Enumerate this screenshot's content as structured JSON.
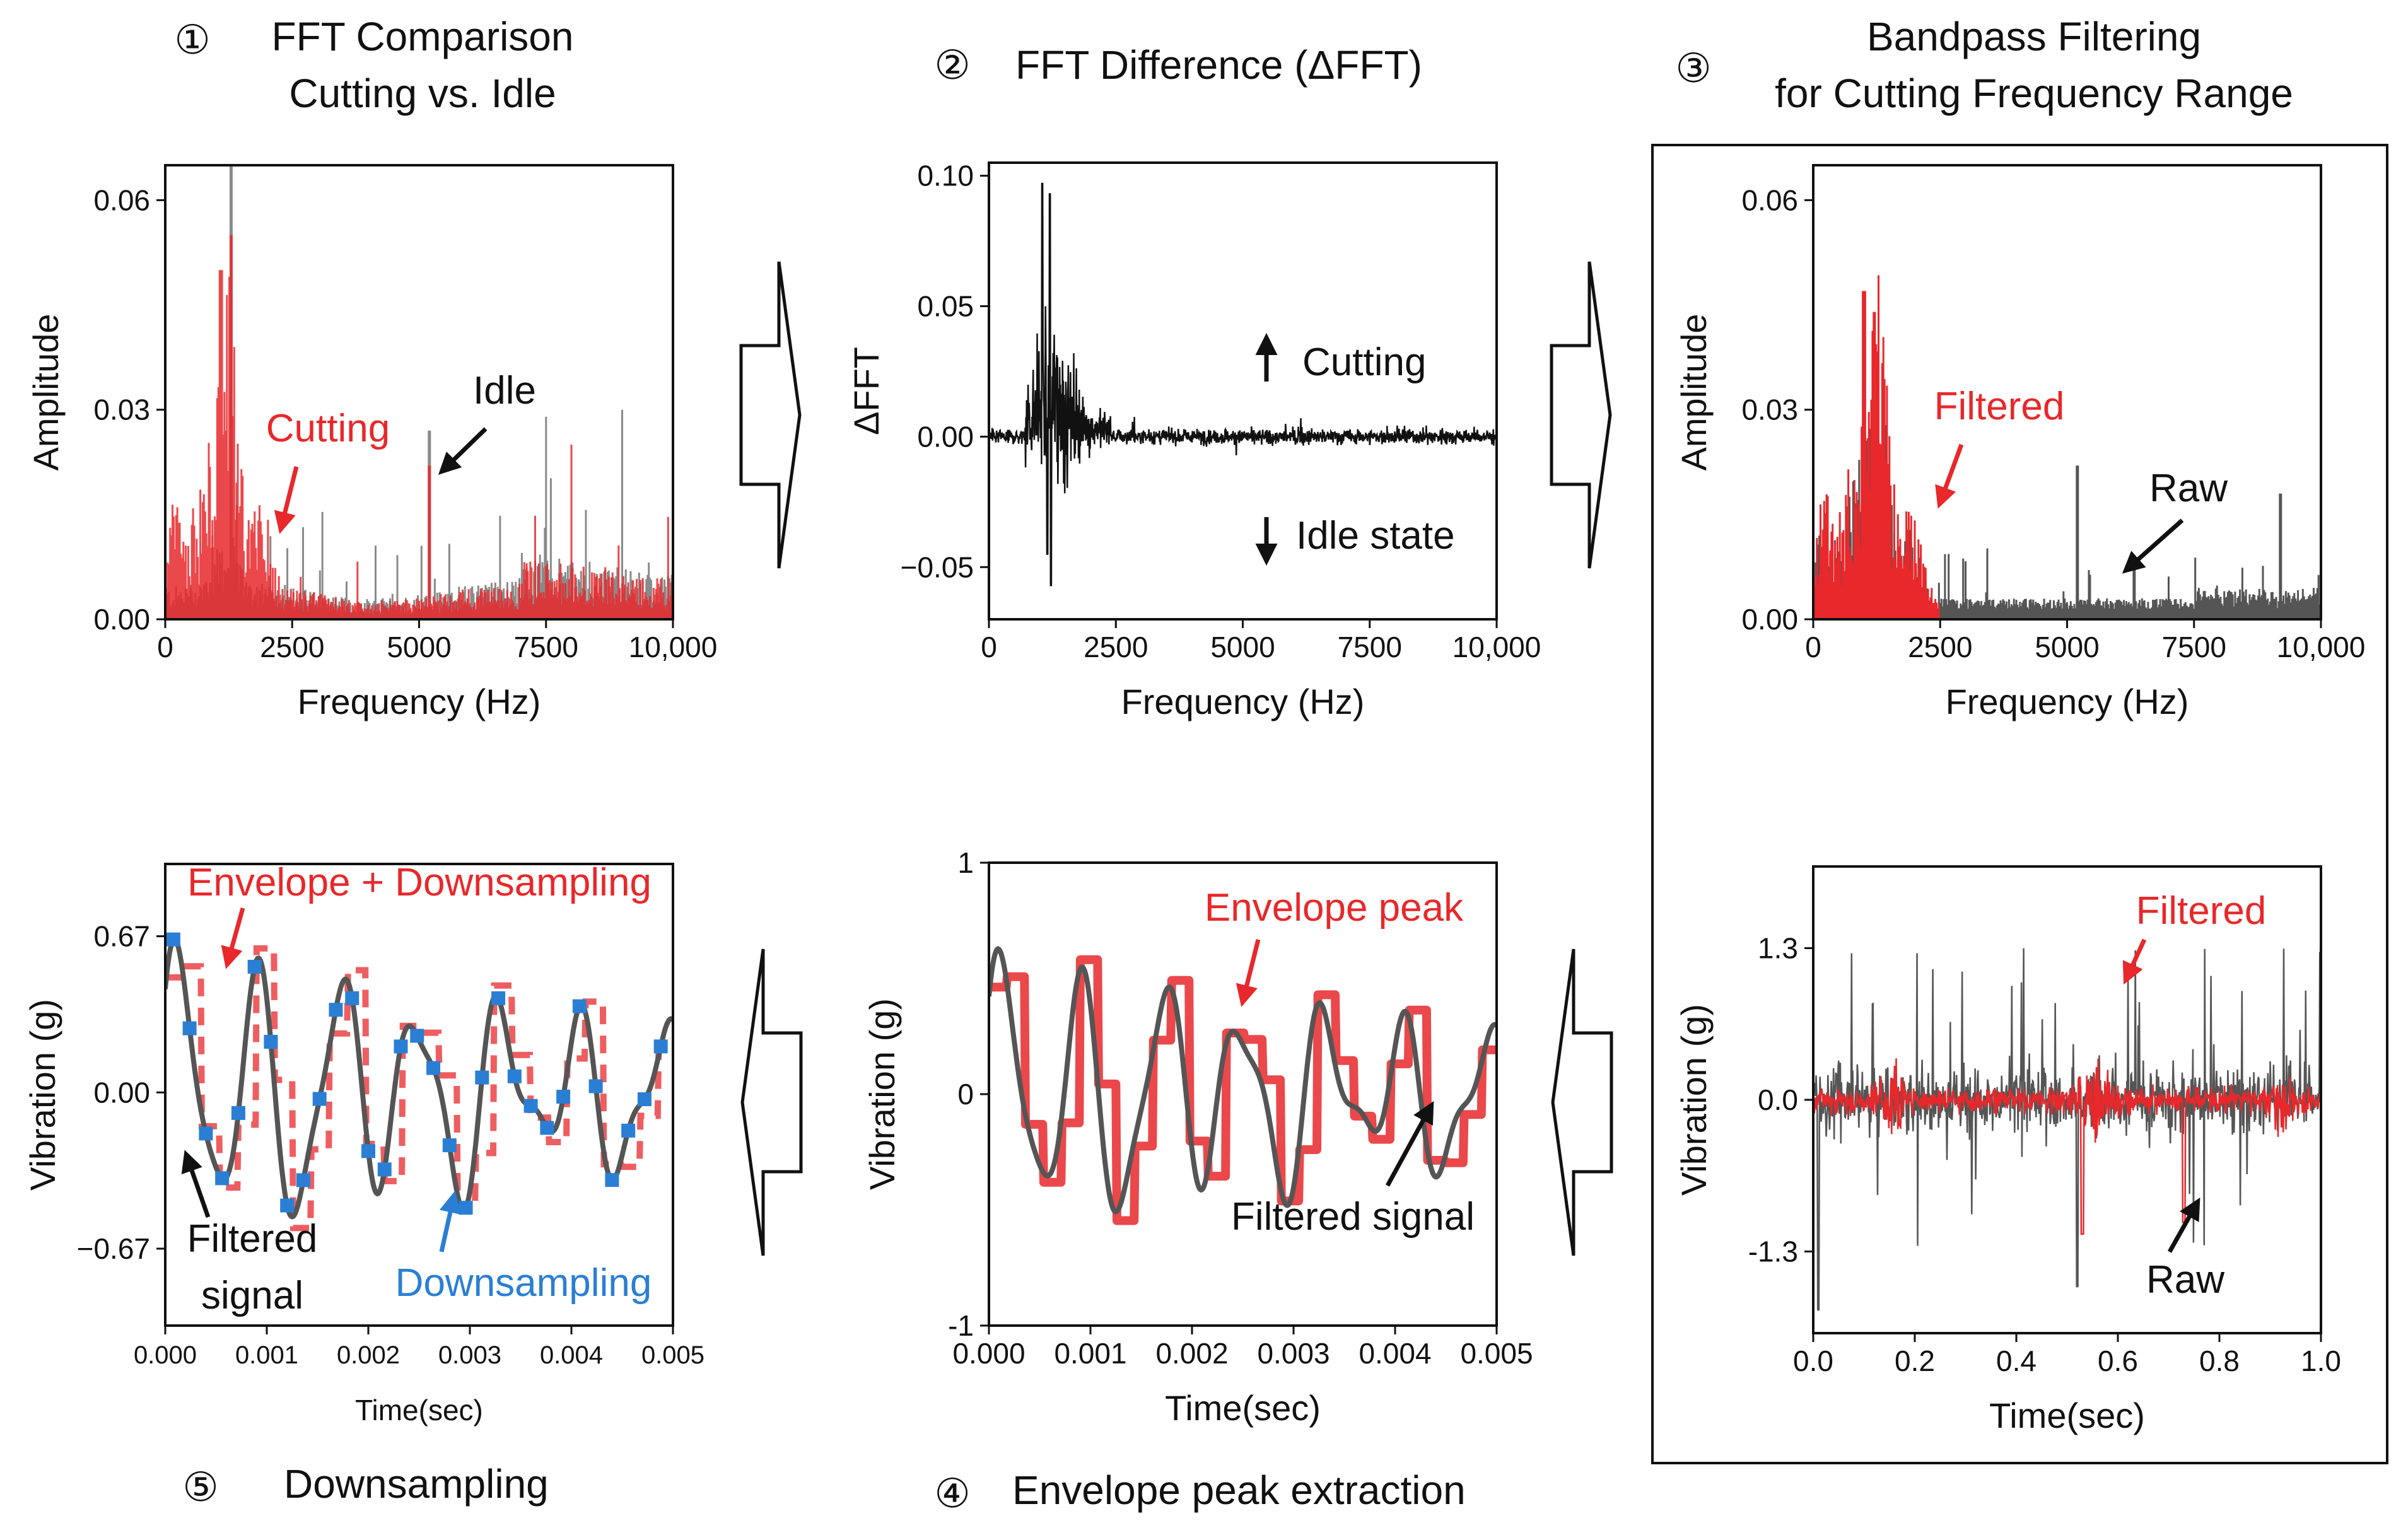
{
  "steps": [
    {
      "num": "①",
      "title_lines": [
        "FFT Comparison",
        "Cutting vs. Idle"
      ]
    },
    {
      "num": "②",
      "title_lines": [
        "FFT Difference (ΔFFT)"
      ]
    },
    {
      "num": "③",
      "title_lines": [
        "Bandpass Filtering",
        "for Cutting Frequency Range"
      ]
    },
    {
      "num": "④",
      "title_lines": [
        "Envelope peak extraction"
      ]
    },
    {
      "num": "⑤",
      "title_lines": [
        "Downsampling"
      ]
    }
  ],
  "colors": {
    "red": "#e8282b",
    "dark": "#555555",
    "blue": "#2a7fd4",
    "black": "#111111"
  },
  "icons": [
    "arrow-right-icon",
    "arrow-right-icon",
    "arrow-left-icon",
    "arrow-left-icon"
  ],
  "chart_data": [
    {
      "id": "p1",
      "type": "bar",
      "xlabel": "Frequency (Hz)",
      "ylabel": "Amplitude",
      "xlim": [
        0,
        10000
      ],
      "ylim": [
        0,
        0.065
      ],
      "xticks": [
        "0",
        "2500",
        "5000",
        "7500",
        "10,000"
      ],
      "yticks": [
        "0.00",
        "0.03",
        "0.06"
      ],
      "series": [
        {
          "name": "Cutting"
        },
        {
          "name": "Idle"
        }
      ],
      "annotations": [
        {
          "text": "Cutting"
        },
        {
          "text": "Idle"
        }
      ]
    },
    {
      "id": "p2",
      "type": "line",
      "xlabel": "Frequency (Hz)",
      "ylabel": "ΔFFT",
      "xlim": [
        0,
        10000
      ],
      "ylim": [
        -0.07,
        0.105
      ],
      "xticks": [
        "0",
        "2500",
        "5000",
        "7500",
        "10,000"
      ],
      "yticks": [
        "0.10",
        "0.05",
        "0.00",
        "−0.05"
      ],
      "annotations": [
        {
          "text": "Cutting"
        },
        {
          "text": "Idle state"
        }
      ]
    },
    {
      "id": "p3a",
      "type": "bar",
      "xlabel": "Frequency (Hz)",
      "ylabel": "Amplitude",
      "xlim": [
        0,
        10000
      ],
      "ylim": [
        0,
        0.065
      ],
      "xticks": [
        "0",
        "2500",
        "5000",
        "7500",
        "10,000"
      ],
      "yticks": [
        "0.00",
        "0.03",
        "0.06"
      ],
      "series": [
        {
          "name": "Filtered"
        },
        {
          "name": "Raw"
        }
      ],
      "annotations": [
        {
          "text": "Filtered"
        },
        {
          "text": "Raw"
        }
      ]
    },
    {
      "id": "p3b",
      "type": "line",
      "xlabel": "Time(sec)",
      "ylabel": "Vibration (g)",
      "xlim": [
        0,
        1.0
      ],
      "ylim": [
        -2.0,
        2.0
      ],
      "xticks": [
        "0.0",
        "0.2",
        "0.4",
        "0.6",
        "0.8",
        "1.0"
      ],
      "yticks": [
        "1.3",
        "0.0",
        "-1.3"
      ],
      "series": [
        {
          "name": "Filtered"
        },
        {
          "name": "Raw"
        }
      ],
      "annotations": [
        {
          "text": "Filtered"
        },
        {
          "text": "Raw"
        }
      ]
    },
    {
      "id": "p4",
      "type": "line",
      "xlabel": "Time(sec)",
      "ylabel": "Vibration (g)",
      "xlim": [
        0,
        0.005
      ],
      "ylim": [
        -1,
        1
      ],
      "xticks": [
        "0.000",
        "0.001",
        "0.002",
        "0.003",
        "0.004",
        "0.005"
      ],
      "yticks": [
        "1",
        "0",
        "-1"
      ],
      "series": [
        {
          "name": "Envelope peak"
        },
        {
          "name": "Filtered signal"
        }
      ],
      "annotations": [
        {
          "text": "Envelope peak"
        },
        {
          "text": "Filtered signal"
        }
      ]
    },
    {
      "id": "p5",
      "type": "line",
      "xlabel": "Time(sec)",
      "ylabel": "Vibration (g)",
      "xlim": [
        0,
        0.005
      ],
      "ylim": [
        -1.0,
        0.98
      ],
      "xticks": [
        "0.000",
        "0.001",
        "0.002",
        "0.003",
        "0.004",
        "0.005"
      ],
      "yticks": [
        "0.67",
        "0.00",
        "−0.67"
      ],
      "series": [
        {
          "name": "Envelope + Downsampling"
        },
        {
          "name": "Filtered signal"
        },
        {
          "name": "Downsampling"
        }
      ],
      "annotations": [
        {
          "text": "Envelope + Downsampling"
        },
        {
          "text": "Filtered"
        },
        {
          "text": "signal"
        },
        {
          "text": "Downsampling"
        }
      ]
    }
  ]
}
